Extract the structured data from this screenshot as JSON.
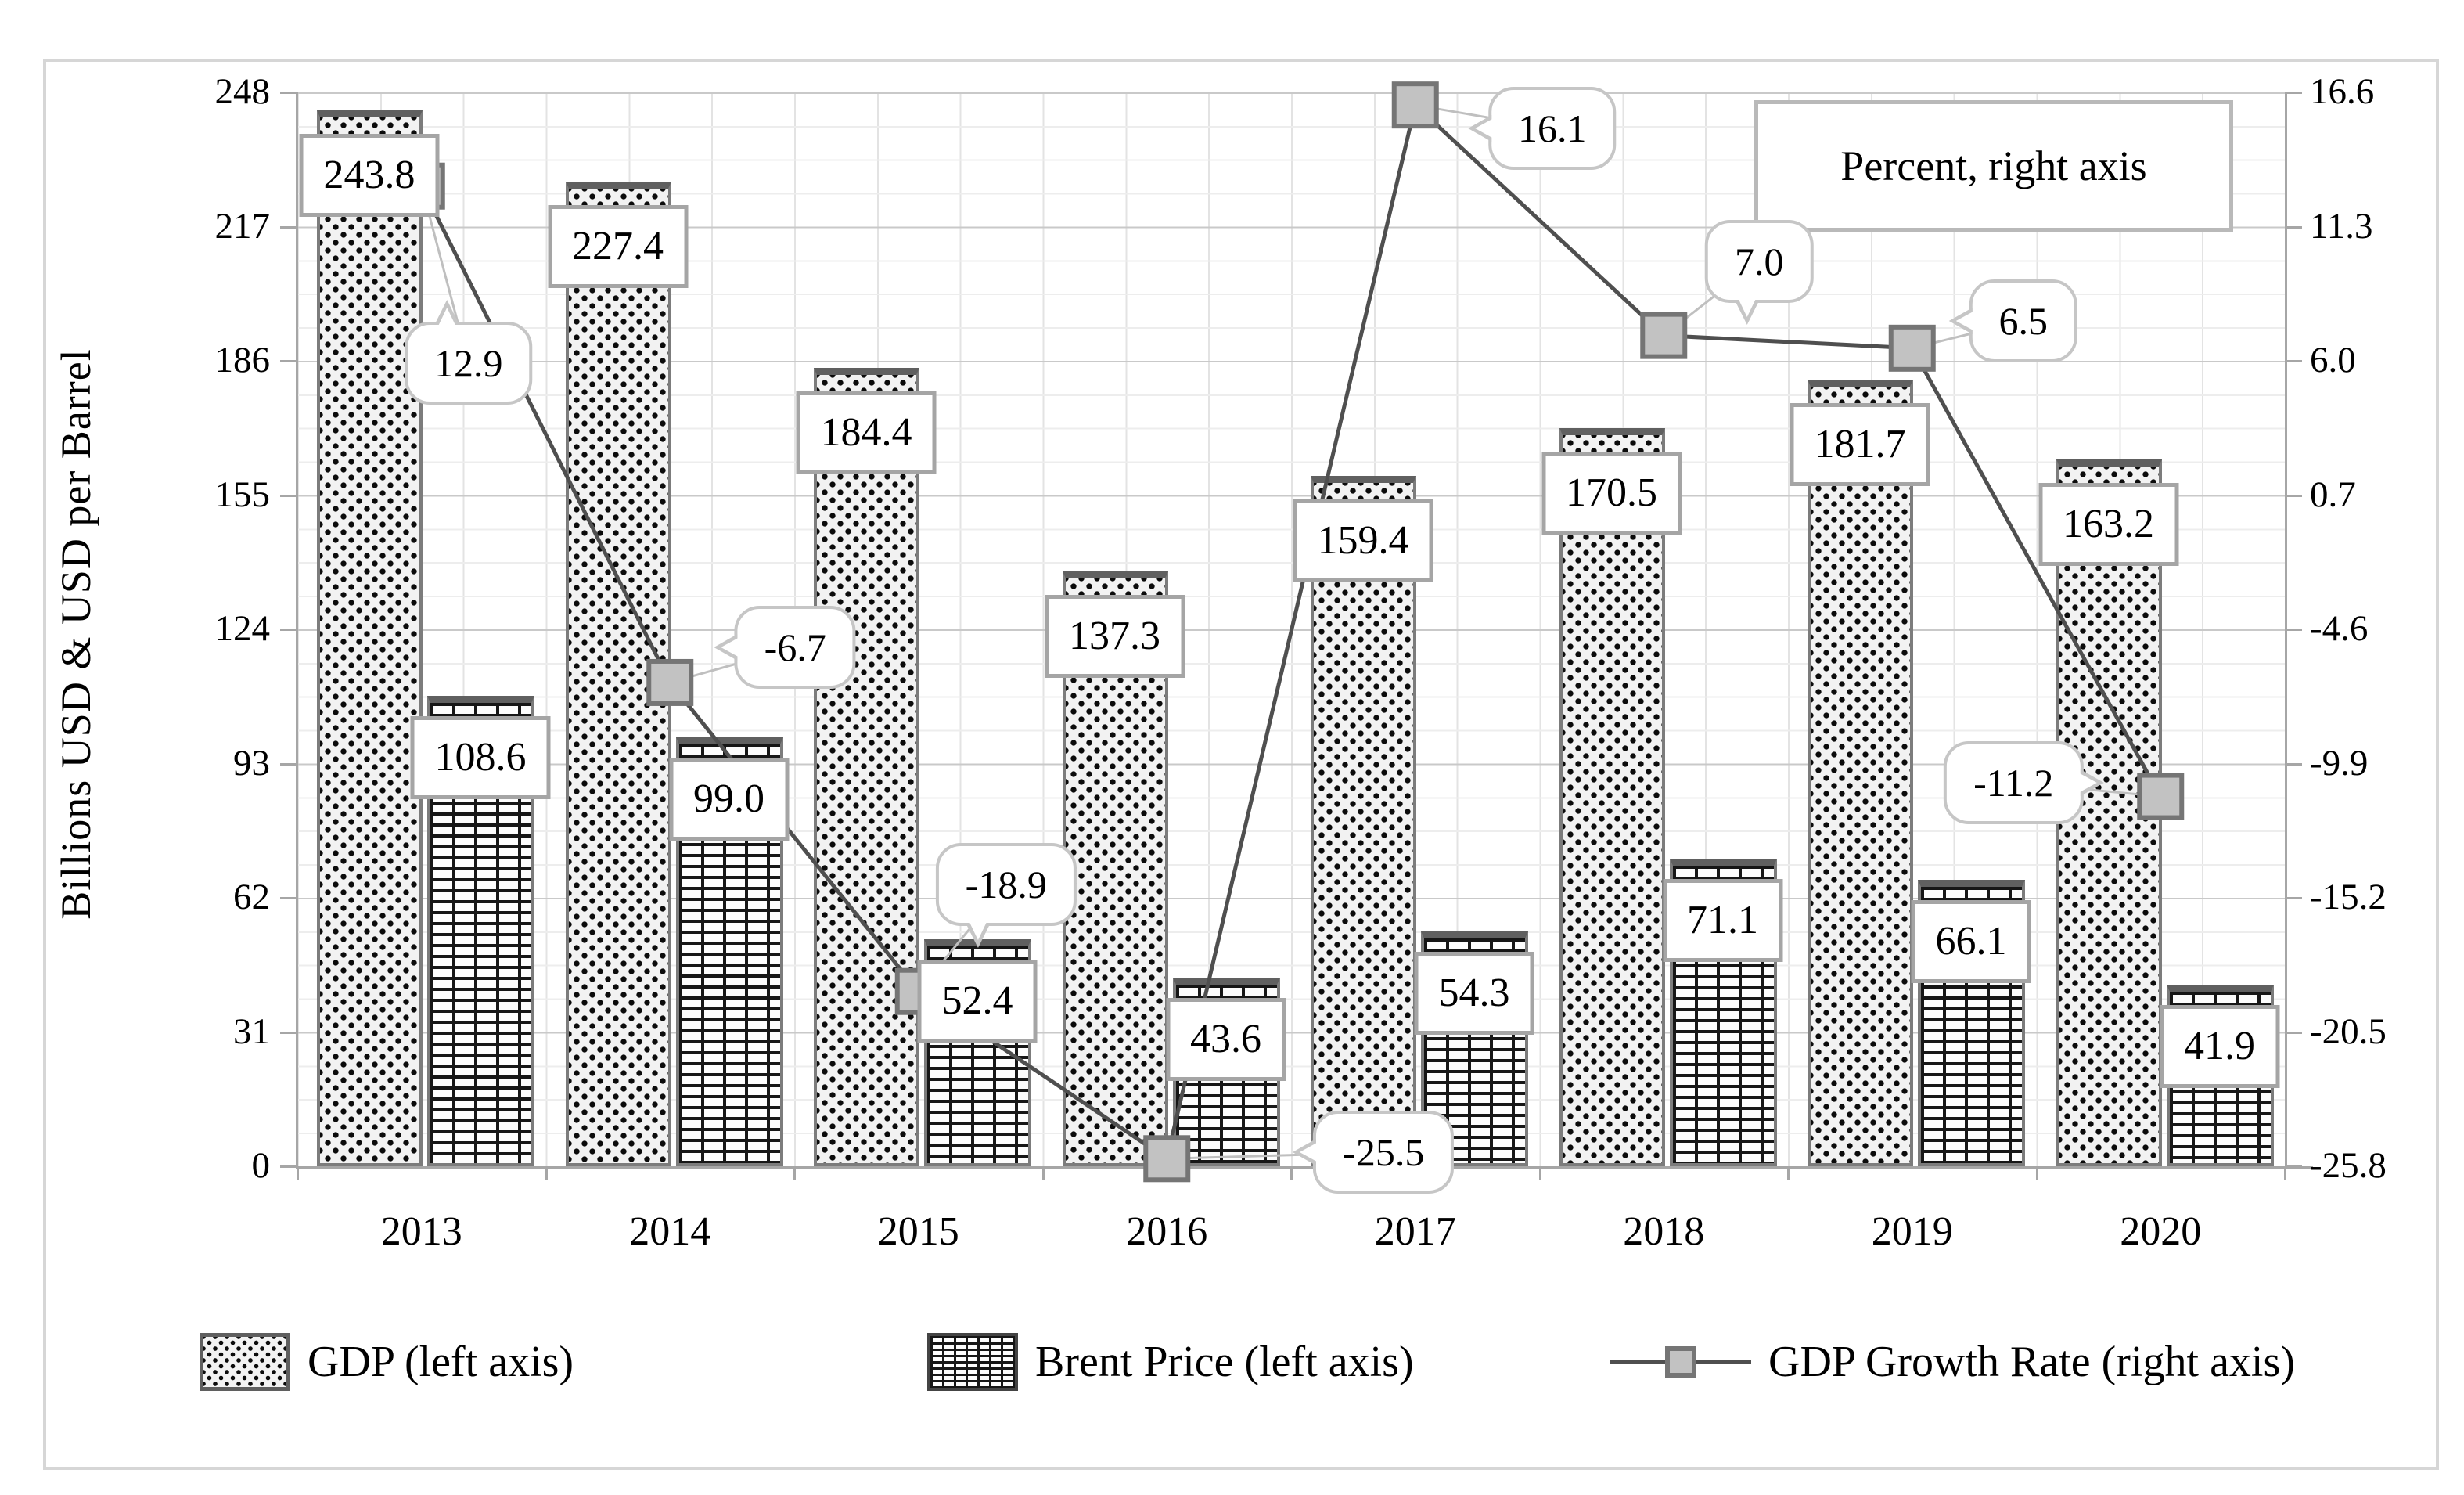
{
  "chart_data": {
    "type": "bar",
    "subtype": "combo-bar-line",
    "title": "",
    "categories": [
      "2013",
      "2014",
      "2015",
      "2016",
      "2017",
      "2018",
      "2019",
      "2020"
    ],
    "series": [
      {
        "name": "GDP (left axis)",
        "kind": "bar",
        "axis": "left",
        "values": [
          243.8,
          227.4,
          184.4,
          137.3,
          159.4,
          170.5,
          181.7,
          163.2
        ],
        "labels": [
          "243.8",
          "227.4",
          "184.4",
          "137.3",
          "159.4",
          "170.5",
          "181.7",
          "163.2"
        ]
      },
      {
        "name": "Brent Price (left axis)",
        "kind": "bar",
        "axis": "left",
        "values": [
          108.6,
          99.0,
          52.4,
          43.6,
          54.3,
          71.1,
          66.1,
          41.9
        ],
        "labels": [
          "108.6",
          "99.0",
          "52.4",
          "43.6",
          "54.3",
          "71.1",
          "66.1",
          "41.9"
        ]
      },
      {
        "name": "GDP Growth Rate (right axis)",
        "kind": "line",
        "axis": "right",
        "values": [
          12.9,
          -6.7,
          -18.9,
          -25.5,
          16.1,
          7.0,
          6.5,
          -11.2
        ],
        "labels": [
          "12.9",
          "-6.7",
          "-18.9",
          "-25.5",
          "16.1",
          "7.0",
          "6.5",
          "-11.2"
        ]
      }
    ],
    "left_axis": {
      "title": "Billions USD & USD per Barrel",
      "range": [
        0,
        248
      ],
      "ticks": [
        "0",
        "31",
        "62",
        "93",
        "124",
        "155",
        "186",
        "217",
        "248"
      ]
    },
    "right_axis": {
      "range": [
        -25.8,
        16.6
      ],
      "ticks": [
        "-25.8",
        "-20.5",
        "-15.2",
        "-9.9",
        "-4.6",
        "0.7",
        "6.0",
        "11.3",
        "16.6"
      ]
    },
    "annotation": "Percent, right axis",
    "legend": [
      "GDP (left axis)",
      "Brent Price (left axis)",
      "GDP Growth Rate (right axis)"
    ],
    "grid": "on",
    "legend_position": "bottom",
    "colors": {
      "series_line": "#4f4f4f",
      "marker_fill": "#c2c2c2",
      "marker_border": "#757575",
      "bar_border": "#7c7c7c",
      "gridline_major": "#c9c9c9",
      "gridline_minor": "#ededed",
      "axis": "#a6a6a6",
      "callout_border": "#c6c6c6",
      "figure_border": "#d6d6d6"
    }
  }
}
